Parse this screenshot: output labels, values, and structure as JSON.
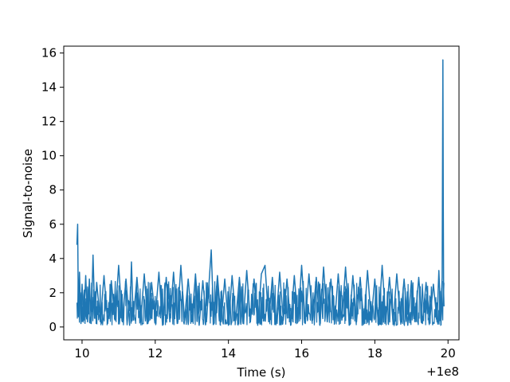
{
  "chart_data": {
    "type": "line",
    "title": "",
    "xlabel": "Time (s)",
    "ylabel": "Signal-to-noise",
    "x_offset_label": "+1e8",
    "xlim": [
      9.5,
      20.3
    ],
    "ylim": [
      -0.75,
      16.4
    ],
    "grid": false,
    "legend": "none",
    "series_color": "#1f77b4",
    "x_ticks": [
      10,
      12,
      14,
      16,
      18,
      20
    ],
    "y_ticks": [
      0,
      2,
      4,
      6,
      8,
      10,
      12,
      14,
      16
    ],
    "series": [
      {
        "x": [
          9.86,
          9.88,
          9.9,
          9.93,
          9.97,
          10.0,
          10.05,
          10.1,
          10.15,
          10.2,
          10.25,
          10.3,
          10.35,
          10.4,
          10.5,
          10.6,
          10.7,
          10.8,
          10.9,
          11.0,
          11.1,
          11.2,
          11.3,
          11.35,
          11.4,
          11.5,
          11.6,
          11.7,
          11.8,
          11.9,
          12.0,
          12.1,
          12.2,
          12.3,
          12.4,
          12.5,
          12.6,
          12.7,
          12.8,
          12.9,
          13.0,
          13.1,
          13.2,
          13.3,
          13.4,
          13.53,
          13.6,
          13.7,
          13.8,
          13.9,
          14.0,
          14.1,
          14.2,
          14.3,
          14.4,
          14.5,
          14.6,
          14.7,
          14.8,
          14.9,
          15.0,
          15.1,
          15.2,
          15.3,
          15.4,
          15.5,
          15.6,
          15.7,
          15.8,
          15.9,
          16.0,
          16.1,
          16.2,
          16.3,
          16.4,
          16.5,
          16.6,
          16.7,
          16.8,
          16.9,
          17.0,
          17.1,
          17.2,
          17.3,
          17.4,
          17.5,
          17.6,
          17.7,
          17.8,
          17.9,
          18.0,
          18.1,
          18.2,
          18.3,
          18.4,
          18.5,
          18.6,
          18.7,
          18.8,
          18.9,
          19.0,
          19.1,
          19.2,
          19.3,
          19.4,
          19.5,
          19.6,
          19.7,
          19.75,
          19.8,
          19.84,
          19.86,
          19.87,
          19.88,
          19.89
        ],
        "y": [
          4.8,
          6.0,
          0.6,
          3.2,
          0.2,
          2.5,
          0.4,
          3.0,
          0.3,
          2.8,
          0.2,
          4.2,
          0.5,
          2.6,
          0.3,
          3.0,
          0.2,
          2.7,
          0.4,
          3.6,
          0.3,
          2.8,
          0.1,
          3.8,
          0.4,
          2.9,
          0.3,
          3.1,
          0.2,
          2.6,
          0.5,
          3.2,
          0.1,
          2.9,
          0.3,
          3.2,
          0.2,
          3.6,
          0.4,
          2.8,
          0.3,
          3.1,
          0.1,
          2.7,
          0.3,
          4.5,
          0.2,
          3.0,
          0.3,
          2.8,
          0.1,
          3.0,
          0.4,
          2.9,
          0.2,
          3.3,
          0.3,
          2.8,
          0.1,
          3.1,
          3.6,
          0.3,
          2.9,
          0.2,
          3.2,
          0.4,
          2.8,
          0.1,
          3.0,
          0.3,
          3.6,
          0.2,
          3.1,
          0.4,
          2.9,
          0.1,
          3.5,
          0.3,
          2.8,
          0.2,
          3.1,
          0.4,
          3.5,
          0.1,
          3.0,
          0.3,
          2.9,
          0.2,
          3.3,
          0.4,
          2.8,
          0.1,
          3.6,
          0.3,
          2.9,
          0.2,
          3.1,
          0.4,
          2.8,
          0.1,
          2.7,
          0.3,
          2.9,
          0.2,
          2.6,
          0.4,
          2.5,
          0.3,
          3.3,
          0.5,
          2.9,
          15.6,
          7.4,
          2.0,
          1.2
        ]
      }
    ]
  }
}
